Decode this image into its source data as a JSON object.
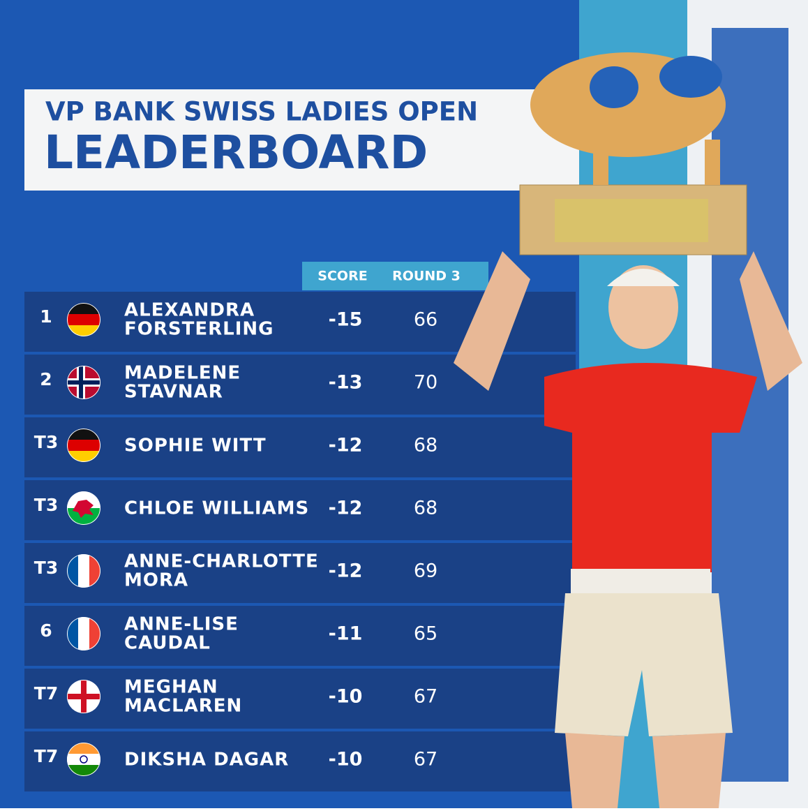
{
  "header": {
    "subtitle": "VP BANK SWISS LADIES OPEN",
    "title": "LEADERBOARD"
  },
  "table": {
    "columns": [
      "SCORE",
      "ROUND 3"
    ],
    "rows": [
      {
        "position": "1",
        "name": [
          "ALEXANDRA",
          "FORSTERLING"
        ],
        "score": "-15",
        "round": "66"
      },
      {
        "position": "2",
        "name": [
          "MADELENE",
          "STAVNAR"
        ],
        "score": "-13",
        "round": "70"
      },
      {
        "position": "T3",
        "name": [
          "SOPHIE WITT"
        ],
        "score": "-12",
        "round": "68"
      },
      {
        "position": "T3",
        "name": [
          "CHLOE WILLIAMS"
        ],
        "score": "-12",
        "round": "68"
      },
      {
        "position": "T3",
        "name": [
          "ANNE-CHARLOTTE",
          "MORA"
        ],
        "score": "-12",
        "round": "69"
      },
      {
        "position": "6",
        "name": [
          "ANNE-LISE",
          "CAUDAL"
        ],
        "score": "-11",
        "round": "65"
      },
      {
        "position": "T7",
        "name": [
          "MEGHAN",
          "MACLAREN"
        ],
        "score": "-10",
        "round": "67"
      },
      {
        "position": "T7",
        "name": [
          "DIKSHA DAGAR"
        ],
        "score": "-10",
        "round": "67"
      }
    ]
  }
}
